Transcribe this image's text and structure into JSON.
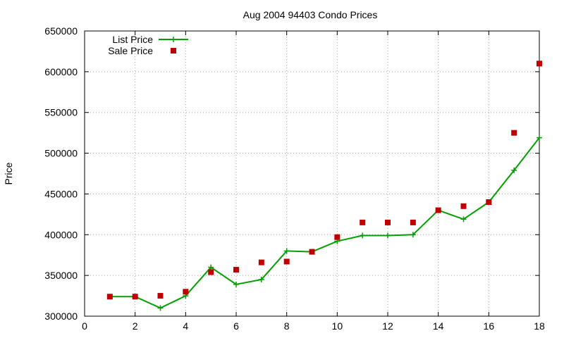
{
  "chart_data": {
    "type": "line",
    "title": "Aug 2004 94403 Condo Prices",
    "xlabel": "",
    "ylabel": "Price",
    "xlim": [
      0,
      18
    ],
    "ylim": [
      300000,
      650000
    ],
    "x_ticks": [
      0,
      2,
      4,
      6,
      8,
      10,
      12,
      14,
      16,
      18
    ],
    "y_ticks": [
      300000,
      350000,
      400000,
      450000,
      500000,
      550000,
      600000,
      650000
    ],
    "grid": true,
    "legend_position": "top-left",
    "series": [
      {
        "name": "List Price",
        "style": "line-plus",
        "color": "#00a000",
        "x": [
          1,
          2,
          3,
          4,
          5,
          6,
          7,
          8,
          9,
          10,
          11,
          12,
          13,
          14,
          15,
          16,
          17,
          18
        ],
        "values": [
          324000,
          324000,
          310000,
          325000,
          360000,
          339000,
          345000,
          380000,
          379000,
          392000,
          399000,
          399000,
          400000,
          430000,
          419000,
          440000,
          479000,
          519000
        ]
      },
      {
        "name": "Sale Price",
        "style": "square-points",
        "color": "#c00000",
        "x": [
          1,
          2,
          3,
          4,
          5,
          6,
          7,
          8,
          9,
          10,
          11,
          12,
          13,
          14,
          15,
          16,
          17,
          18
        ],
        "values": [
          324000,
          324000,
          325000,
          330000,
          354000,
          357000,
          366000,
          367000,
          379000,
          397000,
          415000,
          415000,
          415000,
          430000,
          435000,
          440000,
          525000,
          610000
        ]
      }
    ]
  }
}
